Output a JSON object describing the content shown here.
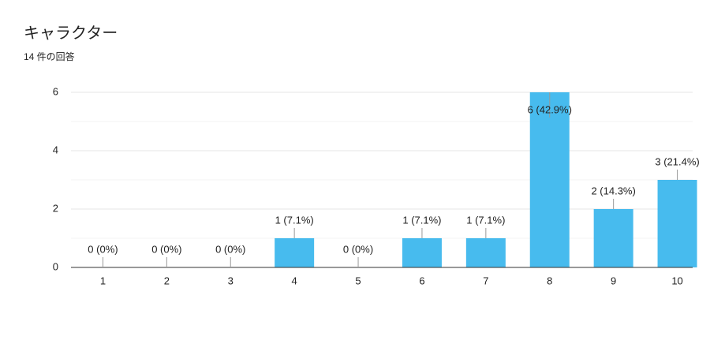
{
  "chart_data": {
    "type": "bar",
    "title": "キャラクター",
    "subtitle": "14 件の回答",
    "categories": [
      "1",
      "2",
      "3",
      "4",
      "5",
      "6",
      "7",
      "8",
      "9",
      "10"
    ],
    "values": [
      0,
      0,
      0,
      1,
      0,
      1,
      1,
      6,
      2,
      3
    ],
    "value_labels": [
      "0 (0%)",
      "0 (0%)",
      "0 (0%)",
      "1 (7.1%)",
      "0 (0%)",
      "1 (7.1%)",
      "1 (7.1%)",
      "6 (42.9%)",
      "2 (14.3%)",
      "3 (21.4%)"
    ],
    "color": "#47bbee",
    "ylim": [
      0,
      6
    ],
    "yticks": [
      0,
      2,
      4,
      6
    ],
    "yminorticks": [
      1,
      3,
      5
    ],
    "grid": true
  }
}
